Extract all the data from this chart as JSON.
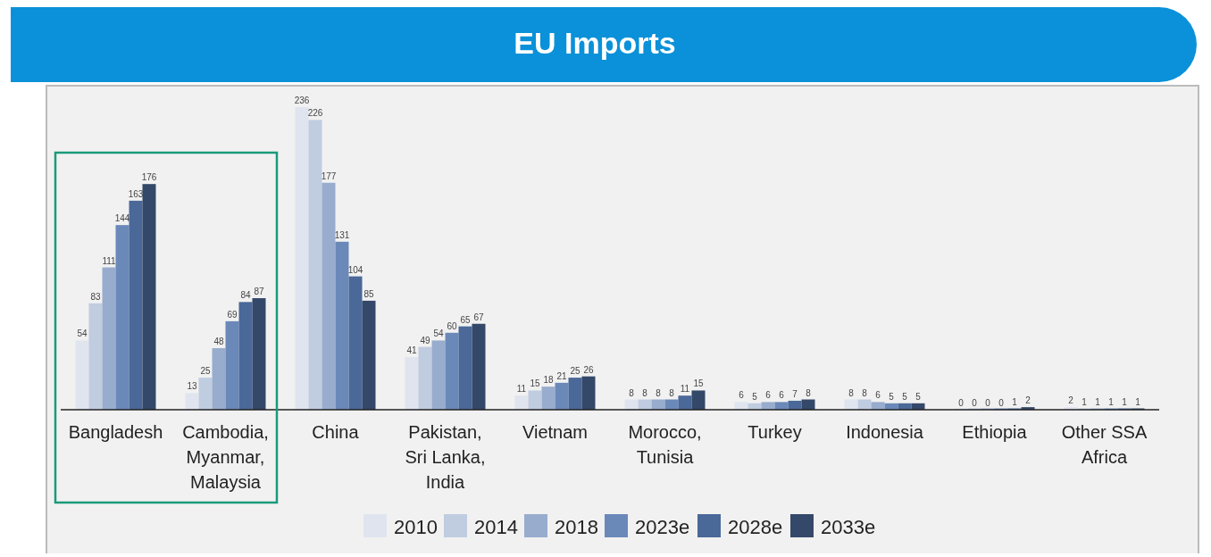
{
  "chart_data": {
    "type": "bar",
    "title": "EU Imports",
    "categories": [
      "Bangladesh",
      "Cambodia, Myanmar, Malaysia",
      "China",
      "Pakistan, Sri Lanka, India",
      "Vietnam",
      "Morocco, Tunisia",
      "Turkey",
      "Indonesia",
      "Ethiopia",
      "Other SSA Africa"
    ],
    "series": [
      {
        "name": "2010",
        "color": "#dfe4ef",
        "values": [
          54,
          13,
          236,
          41,
          11,
          8,
          6,
          8,
          0,
          2
        ]
      },
      {
        "name": "2014",
        "color": "#c0cce0",
        "values": [
          83,
          25,
          226,
          49,
          15,
          8,
          5,
          8,
          0,
          1
        ]
      },
      {
        "name": "2018",
        "color": "#98acce",
        "values": [
          111,
          48,
          177,
          54,
          18,
          8,
          6,
          6,
          0,
          1
        ]
      },
      {
        "name": "2023e",
        "color": "#6a89b9",
        "values": [
          144,
          69,
          131,
          60,
          21,
          8,
          6,
          5,
          0,
          1
        ]
      },
      {
        "name": "2028e",
        "color": "#4a6898",
        "values": [
          163,
          84,
          104,
          65,
          25,
          11,
          7,
          5,
          1,
          1
        ]
      },
      {
        "name": "2033e",
        "color": "#344869",
        "values": [
          176,
          87,
          85,
          67,
          26,
          15,
          8,
          5,
          2,
          1
        ]
      }
    ],
    "data_labels": true,
    "legend": "bottom"
  }
}
